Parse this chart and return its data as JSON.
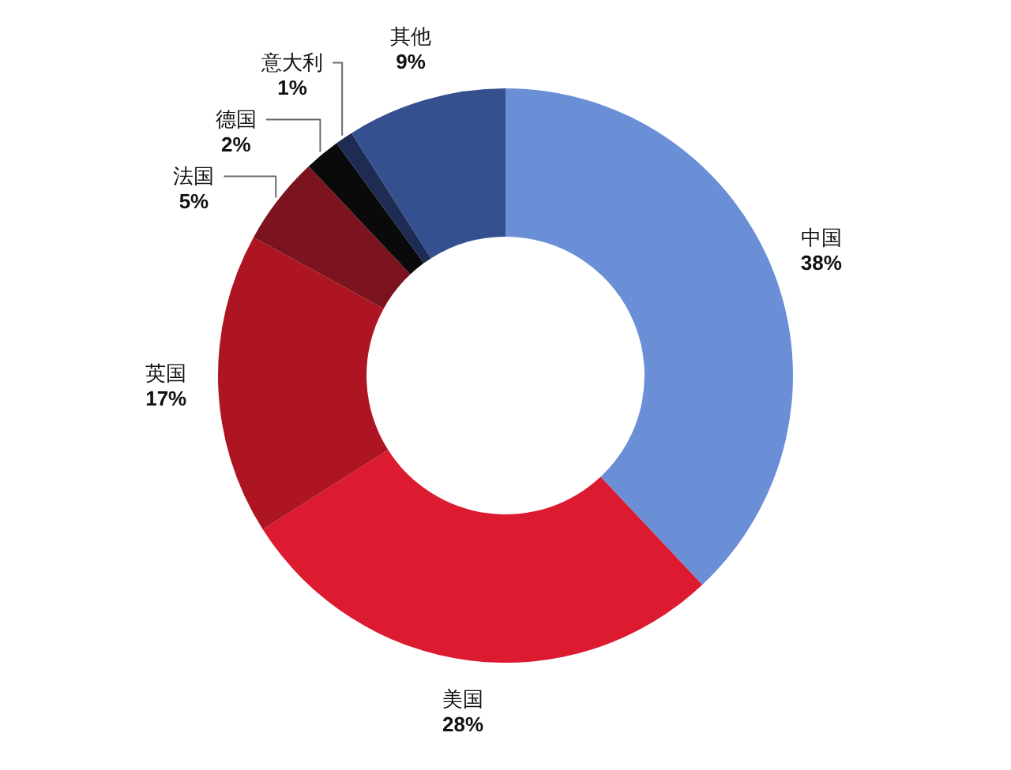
{
  "chart_data": {
    "type": "donut",
    "categories": [
      "中国",
      "美国",
      "英国",
      "法国",
      "德国",
      "意大利",
      "其他"
    ],
    "values": [
      38,
      28,
      17,
      5,
      2,
      1,
      9
    ],
    "colors": [
      "#6a8fd6",
      "#dc1a30",
      "#ae1522",
      "#7c1420",
      "#0a0a0a",
      "#1e2b52",
      "#34508f"
    ],
    "value_labels": [
      "38%",
      "28%",
      "17%",
      "5%",
      "2%",
      "1%",
      "9%"
    ]
  }
}
